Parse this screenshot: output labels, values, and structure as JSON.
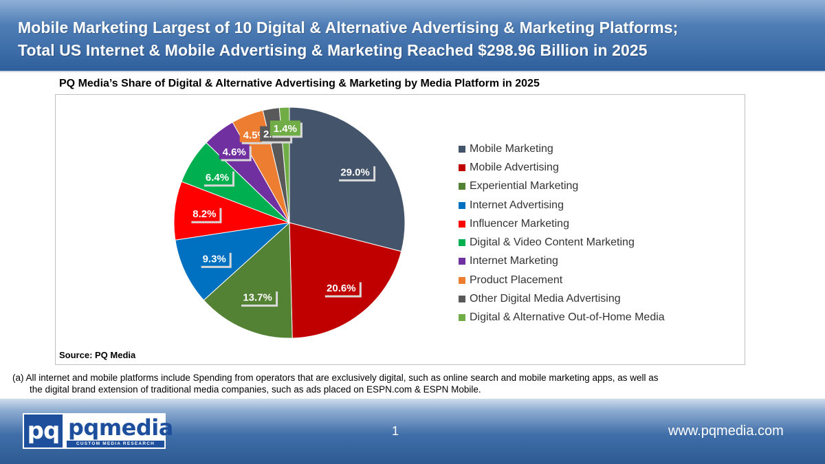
{
  "header": {
    "line1": "Mobile Marketing Largest of 10 Digital & Alternative Advertising & Marketing Platforms;",
    "line2": "Total US Internet & Mobile Advertising & Marketing Reached $298.96 Billion in 2025"
  },
  "chart_data": {
    "type": "pie",
    "title": "PQ Media’s Share of Digital & Alternative Advertising & Marketing by Media Platform in 2025",
    "categories": [
      "Mobile Marketing",
      "Mobile Advertising",
      "Experiential Marketing",
      "Internet Advertising",
      "Influencer Marketing",
      "Digital & Video Content Marketing",
      "Internet Marketing",
      "Product Placement",
      "Other Digital Media Advertising",
      "Digital & Alternative Out-of-Home Media"
    ],
    "values": [
      29.0,
      20.6,
      13.7,
      9.3,
      8.2,
      6.4,
      4.6,
      4.5,
      2.3,
      1.4
    ],
    "value_labels": [
      "29.0%",
      "20.6%",
      "13.7%",
      "9.3%",
      "8.2%",
      "6.4%",
      "4.6%",
      "4.5%",
      "2.3%",
      "1.4%"
    ],
    "colors": [
      "#44546a",
      "#c00000",
      "#548235",
      "#0070c0",
      "#ff0000",
      "#00b050",
      "#7030a0",
      "#ed7d31",
      "#595959",
      "#70ad47"
    ],
    "legend_placement": "right",
    "source": "Source: PQ Media"
  },
  "footnote": {
    "line1": "(a) All internet and mobile platforms include Spending from operators that are exclusively digital, such as online search and mobile marketing apps, as well as",
    "line2": "the digital brand extension of traditional media companies, such as ads placed on ESPN.com & ESPN Mobile."
  },
  "footer": {
    "logo_mark": "pq",
    "logo_word": "pqmedia",
    "logo_tagline": "CUSTOM MEDIA RESEARCH",
    "page_number": "1",
    "website": "www.pqmedia.com"
  }
}
